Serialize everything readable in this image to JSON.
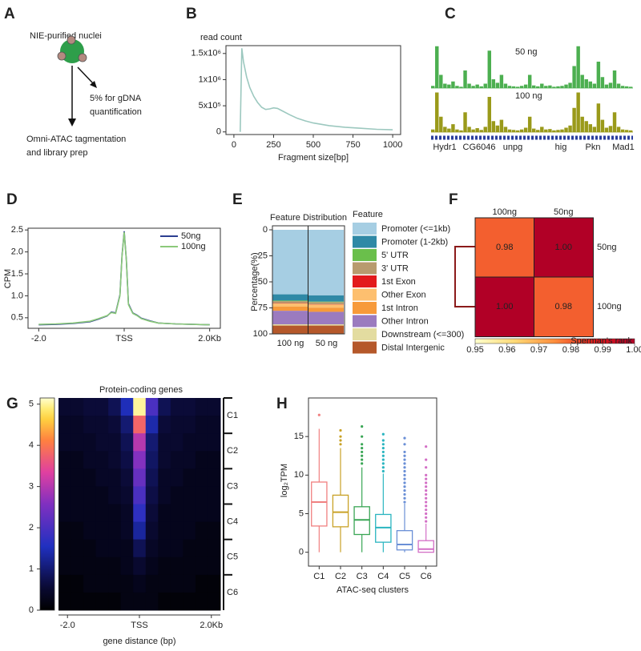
{
  "panel_labels": [
    "A",
    "B",
    "C",
    "D",
    "E",
    "F",
    "G",
    "H"
  ],
  "diagram": {
    "nuclei_label": "NIE-purified nuclei",
    "side_branch": [
      "5% for gDNA",
      "quantification"
    ],
    "main_branch": [
      "Omni-ATAC tagmentation",
      "and library prep"
    ]
  },
  "chart_data": [
    {
      "type": "line",
      "ylabel": "read count",
      "xlabel": "Fragment size[bp]",
      "color": "#9cc8bf",
      "x": [
        40,
        50,
        60,
        80,
        100,
        125,
        150,
        175,
        200,
        225,
        250,
        275,
        300,
        350,
        400,
        450,
        500,
        600,
        700,
        800,
        900,
        1000
      ],
      "values": [
        0,
        1600000,
        1350000,
        1050000,
        850000,
        680000,
        560000,
        470000,
        430000,
        440000,
        460000,
        450000,
        410000,
        330000,
        260000,
        210000,
        170000,
        120000,
        90000,
        70000,
        50000,
        40000
      ],
      "xlim": [
        -50,
        1050
      ],
      "xticks": [
        0,
        250,
        500,
        750,
        1000
      ],
      "ylim": [
        -50000,
        1650000
      ],
      "yticks": [
        0,
        {
          "value": 500000,
          "label": "5x10⁵"
        },
        {
          "value": 1000000,
          "label": "1x10⁶"
        },
        {
          "value": 1500000,
          "label": "1.5x10⁶"
        }
      ]
    },
    {
      "type": "tracks",
      "ylim": [
        0,
        100
      ],
      "genes": [
        "Hydr1",
        "CG6046",
        "unpg",
        "hig",
        "Pkn",
        "Mad1"
      ],
      "series": [
        {
          "name": "50 ng",
          "color": "#4caf50",
          "values": [
            5,
            95,
            30,
            10,
            8,
            15,
            5,
            3,
            40,
            10,
            5,
            8,
            4,
            10,
            85,
            20,
            12,
            30,
            10,
            5,
            4,
            3,
            5,
            8,
            30,
            6,
            4,
            10,
            5,
            6,
            3,
            4,
            5,
            8,
            12,
            50,
            95,
            30,
            20,
            15,
            10,
            60,
            25,
            8,
            12,
            40,
            10,
            5,
            4,
            3
          ]
        },
        {
          "name": "100 ng",
          "color": "#9a9a1a",
          "values": [
            6,
            90,
            35,
            12,
            8,
            18,
            6,
            4,
            45,
            12,
            6,
            9,
            5,
            12,
            80,
            25,
            15,
            28,
            12,
            6,
            5,
            4,
            6,
            10,
            35,
            8,
            5,
            12,
            6,
            7,
            4,
            5,
            6,
            10,
            15,
            55,
            90,
            35,
            25,
            18,
            12,
            65,
            28,
            10,
            14,
            45,
            12,
            6,
            5,
            4
          ]
        }
      ]
    },
    {
      "type": "line",
      "ylabel": "CPM",
      "legend": "upper right",
      "x": [
        -2000,
        -1600,
        -1200,
        -800,
        -600,
        -400,
        -300,
        -200,
        -100,
        -50,
        0,
        50,
        100,
        200,
        300,
        400,
        600,
        800,
        1200,
        1600,
        2000
      ],
      "series": [
        {
          "name": "50ng",
          "color": "#2c3e91",
          "values": [
            0.34,
            0.35,
            0.37,
            0.41,
            0.47,
            0.54,
            0.63,
            0.61,
            1.02,
            1.92,
            2.47,
            1.82,
            0.82,
            0.61,
            0.56,
            0.49,
            0.43,
            0.38,
            0.36,
            0.35,
            0.34
          ]
        },
        {
          "name": "100ng",
          "color": "#8bc97a",
          "values": [
            0.35,
            0.36,
            0.38,
            0.42,
            0.48,
            0.55,
            0.62,
            0.6,
            1.0,
            1.9,
            2.45,
            1.8,
            0.8,
            0.6,
            0.55,
            0.48,
            0.42,
            0.38,
            0.36,
            0.35,
            0.34
          ]
        }
      ],
      "xlim": [
        -2250,
        2250
      ],
      "xticks": [
        {
          "value": -2000,
          "label": "-2.0"
        },
        {
          "value": 0,
          "label": "TSS"
        },
        {
          "value": 2000,
          "label": "2.0Kb"
        }
      ],
      "ylim": [
        0.26,
        2.54
      ],
      "yticks": [
        0.5,
        {
          "value": 1,
          "label": "1.0"
        },
        1.5,
        {
          "value": 2,
          "label": "2.0"
        },
        2.5
      ]
    },
    {
      "type": "stacked_bar",
      "title": "Feature Distribution",
      "ylabel": "Percentage(%)",
      "legend_title": "Feature",
      "categories": [
        "100 ng",
        "50 ng"
      ],
      "invert_y": true,
      "ylim": [
        0,
        100
      ],
      "yticks": [
        0,
        25,
        50,
        75,
        100
      ],
      "series": [
        {
          "name": "Promoter (<=1kb)",
          "color": "#a6cee3",
          "values": [
            62,
            63
          ]
        },
        {
          "name": "Promoter (1-2kb)",
          "color": "#2f89a6",
          "values": [
            6,
            6
          ]
        },
        {
          "name": "5' UTR",
          "color": "#6abf4b",
          "values": [
            0.5,
            0.5
          ]
        },
        {
          "name": "3' UTR",
          "color": "#b89b6e",
          "values": [
            2,
            2
          ]
        },
        {
          "name": "1st Exon",
          "color": "#e31a1c",
          "values": [
            0.3,
            0.3
          ]
        },
        {
          "name": "Other Exon",
          "color": "#fdbf6f",
          "values": [
            3,
            3
          ]
        },
        {
          "name": "1st Intron",
          "color": "#f79a3a",
          "values": [
            4,
            4
          ]
        },
        {
          "name": "Other Intron",
          "color": "#9b7bbf",
          "values": [
            13,
            12
          ]
        },
        {
          "name": "Downstream (<=300)",
          "color": "#e3dca0",
          "values": [
            1.2,
            1.2
          ]
        },
        {
          "name": "Distal Intergenic",
          "color": "#b5582a",
          "values": [
            8,
            8
          ]
        }
      ]
    },
    {
      "type": "heatmap",
      "colormap": "YlOrRd",
      "x_categories": [
        "100ng",
        "50ng"
      ],
      "y_categories": [
        "50ng",
        "100ng"
      ],
      "values": [
        [
          0.98,
          1
        ],
        [
          1,
          0.98
        ]
      ],
      "value_labels": [
        [
          "0.98",
          "1.00"
        ],
        [
          "1.00",
          "0.98"
        ]
      ],
      "colorbar_label": "Sperman's rank",
      "clim": [
        0.95,
        1
      ],
      "cticks": [
        0.95,
        0.96,
        0.97,
        0.98,
        0.99,
        {
          "value": 1,
          "label": "1.00"
        }
      ]
    },
    {
      "type": "heatmap",
      "colormap": "plasma",
      "title": "Protein-coding genes",
      "xlabel": "gene distance (bp)",
      "xlim": [
        -2250,
        2250
      ],
      "xticks": [
        {
          "value": -2000,
          "label": "-2.0"
        },
        {
          "value": 0,
          "label": "TSS"
        },
        {
          "value": 2000,
          "label": "2.0Kb"
        }
      ],
      "clim": [
        0,
        5.15
      ],
      "cticks": [
        0,
        1,
        2,
        3,
        4,
        5
      ],
      "clusters": [
        "C1",
        "C2",
        "C3",
        "C4",
        "C5",
        "C6"
      ],
      "values": [
        [
          0.5,
          0.5,
          0.6,
          0.6,
          0.8,
          1.5,
          5.0,
          2.0,
          0.8,
          0.6,
          0.6,
          0.5,
          0.5
        ],
        [
          0.4,
          0.4,
          0.5,
          0.5,
          0.6,
          1.0,
          3.8,
          1.4,
          0.6,
          0.5,
          0.5,
          0.4,
          0.4
        ],
        [
          0.4,
          0.4,
          0.4,
          0.5,
          0.5,
          0.8,
          3.0,
          1.0,
          0.5,
          0.5,
          0.4,
          0.4,
          0.4
        ],
        [
          0.3,
          0.3,
          0.4,
          0.4,
          0.5,
          0.7,
          2.6,
          0.9,
          0.5,
          0.4,
          0.4,
          0.3,
          0.3
        ],
        [
          0.3,
          0.3,
          0.3,
          0.4,
          0.4,
          0.6,
          2.3,
          0.8,
          0.4,
          0.4,
          0.3,
          0.3,
          0.3
        ],
        [
          0.3,
          0.3,
          0.3,
          0.3,
          0.4,
          0.5,
          2.0,
          0.7,
          0.4,
          0.3,
          0.3,
          0.3,
          0.3
        ],
        [
          0.3,
          0.3,
          0.3,
          0.3,
          0.3,
          0.4,
          1.7,
          0.6,
          0.3,
          0.3,
          0.3,
          0.3,
          0.3
        ],
        [
          0.2,
          0.2,
          0.3,
          0.3,
          0.3,
          0.4,
          1.3,
          0.5,
          0.3,
          0.3,
          0.3,
          0.2,
          0.2
        ],
        [
          0.2,
          0.2,
          0.2,
          0.3,
          0.3,
          0.3,
          0.8,
          0.4,
          0.3,
          0.3,
          0.2,
          0.2,
          0.2
        ],
        [
          0.2,
          0.2,
          0.2,
          0.2,
          0.2,
          0.3,
          0.5,
          0.3,
          0.2,
          0.2,
          0.2,
          0.2,
          0.2
        ],
        [
          0.1,
          0.1,
          0.2,
          0.2,
          0.2,
          0.2,
          0.3,
          0.2,
          0.2,
          0.2,
          0.2,
          0.1,
          0.1
        ],
        [
          0.1,
          0.1,
          0.1,
          0.1,
          0.1,
          0.2,
          0.2,
          0.2,
          0.1,
          0.1,
          0.1,
          0.1,
          0.1
        ]
      ]
    },
    {
      "type": "box",
      "ylabel": "log₂TPM",
      "xlabel": "ATAC-seq clusters",
      "categories": [
        "C1",
        "C2",
        "C3",
        "C4",
        "C5",
        "C6"
      ],
      "colors": [
        "#f08080",
        "#c9a227",
        "#3aa655",
        "#2ab5c0",
        "#6a8fd6",
        "#d36fc6"
      ],
      "ylim": [
        -1.8,
        20
      ],
      "yticks": [
        0,
        5,
        10,
        15
      ],
      "boxes": [
        {
          "min": 0,
          "q1": 3.4,
          "median": 6.5,
          "q3": 9.1,
          "max": 16,
          "outliers": [
            17.8
          ]
        },
        {
          "min": 0,
          "q1": 3.3,
          "median": 5.2,
          "q3": 7.4,
          "max": 13.5,
          "outliers": [
            14,
            14.5,
            15,
            15.8
          ]
        },
        {
          "min": 0,
          "q1": 2.3,
          "median": 4.2,
          "q3": 5.9,
          "max": 11,
          "outliers": [
            11.5,
            12,
            12.5,
            13,
            13.5,
            14,
            15,
            16.3
          ]
        },
        {
          "min": 0,
          "q1": 1.3,
          "median": 3.2,
          "q3": 4.9,
          "max": 10.2,
          "outliers": [
            10.5,
            11,
            11.5,
            12,
            12.5,
            13,
            13.5,
            14,
            14.5,
            15.3
          ]
        },
        {
          "min": 0,
          "q1": 0.3,
          "median": 1.0,
          "q3": 2.8,
          "max": 6.3,
          "outliers": [
            6.5,
            7,
            7.5,
            8,
            8.5,
            9,
            9.5,
            10,
            10.5,
            11,
            11.5,
            12,
            12.5,
            13,
            14,
            14.8
          ]
        },
        {
          "min": 0,
          "q1": 0,
          "median": 0.4,
          "q3": 1.5,
          "max": 3.7,
          "outliers": [
            4,
            4.5,
            5,
            5.5,
            6,
            6.5,
            7,
            7.5,
            8,
            8.5,
            9,
            9.5,
            10,
            11,
            12,
            13.7
          ]
        }
      ]
    }
  ]
}
